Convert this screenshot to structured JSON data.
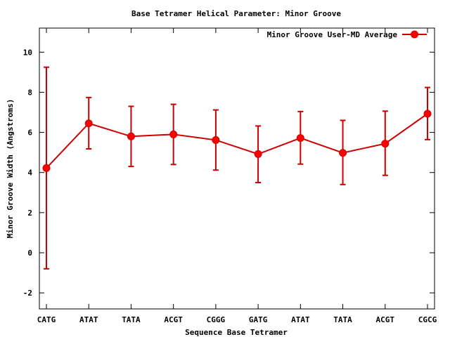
{
  "chart_data": {
    "type": "line",
    "title": "Base Tetramer Helical Parameter: Minor Groove",
    "xlabel": "Sequence Base Tetramer",
    "ylabel": "Minor Groove Width (Angstroms)",
    "categories": [
      "CATG",
      "ATAT",
      "TATA",
      "ACGT",
      "CGGG",
      "GATG",
      "ATAT",
      "TATA",
      "ACGT",
      "CGCG"
    ],
    "series": [
      {
        "name": "Minor Groove User-MD Average",
        "values": [
          4.22,
          6.45,
          5.8,
          5.9,
          5.62,
          4.92,
          5.72,
          4.98,
          5.44,
          6.93
        ],
        "error_low": [
          -0.8,
          5.18,
          4.3,
          4.4,
          4.12,
          3.5,
          4.42,
          3.4,
          3.86,
          5.64
        ],
        "error_high": [
          9.25,
          7.74,
          7.3,
          7.4,
          7.12,
          6.32,
          7.04,
          6.6,
          7.06,
          8.24
        ],
        "color": "#ff0000"
      }
    ],
    "ylim": [
      -2.8,
      11.2
    ],
    "yticks": [
      -2,
      0,
      2,
      4,
      6,
      8,
      10
    ],
    "grid": false,
    "legend_position": "top-right",
    "error_bar_color": "#cc0000",
    "line_color": "#cc0000",
    "axis_color": "#000000"
  }
}
